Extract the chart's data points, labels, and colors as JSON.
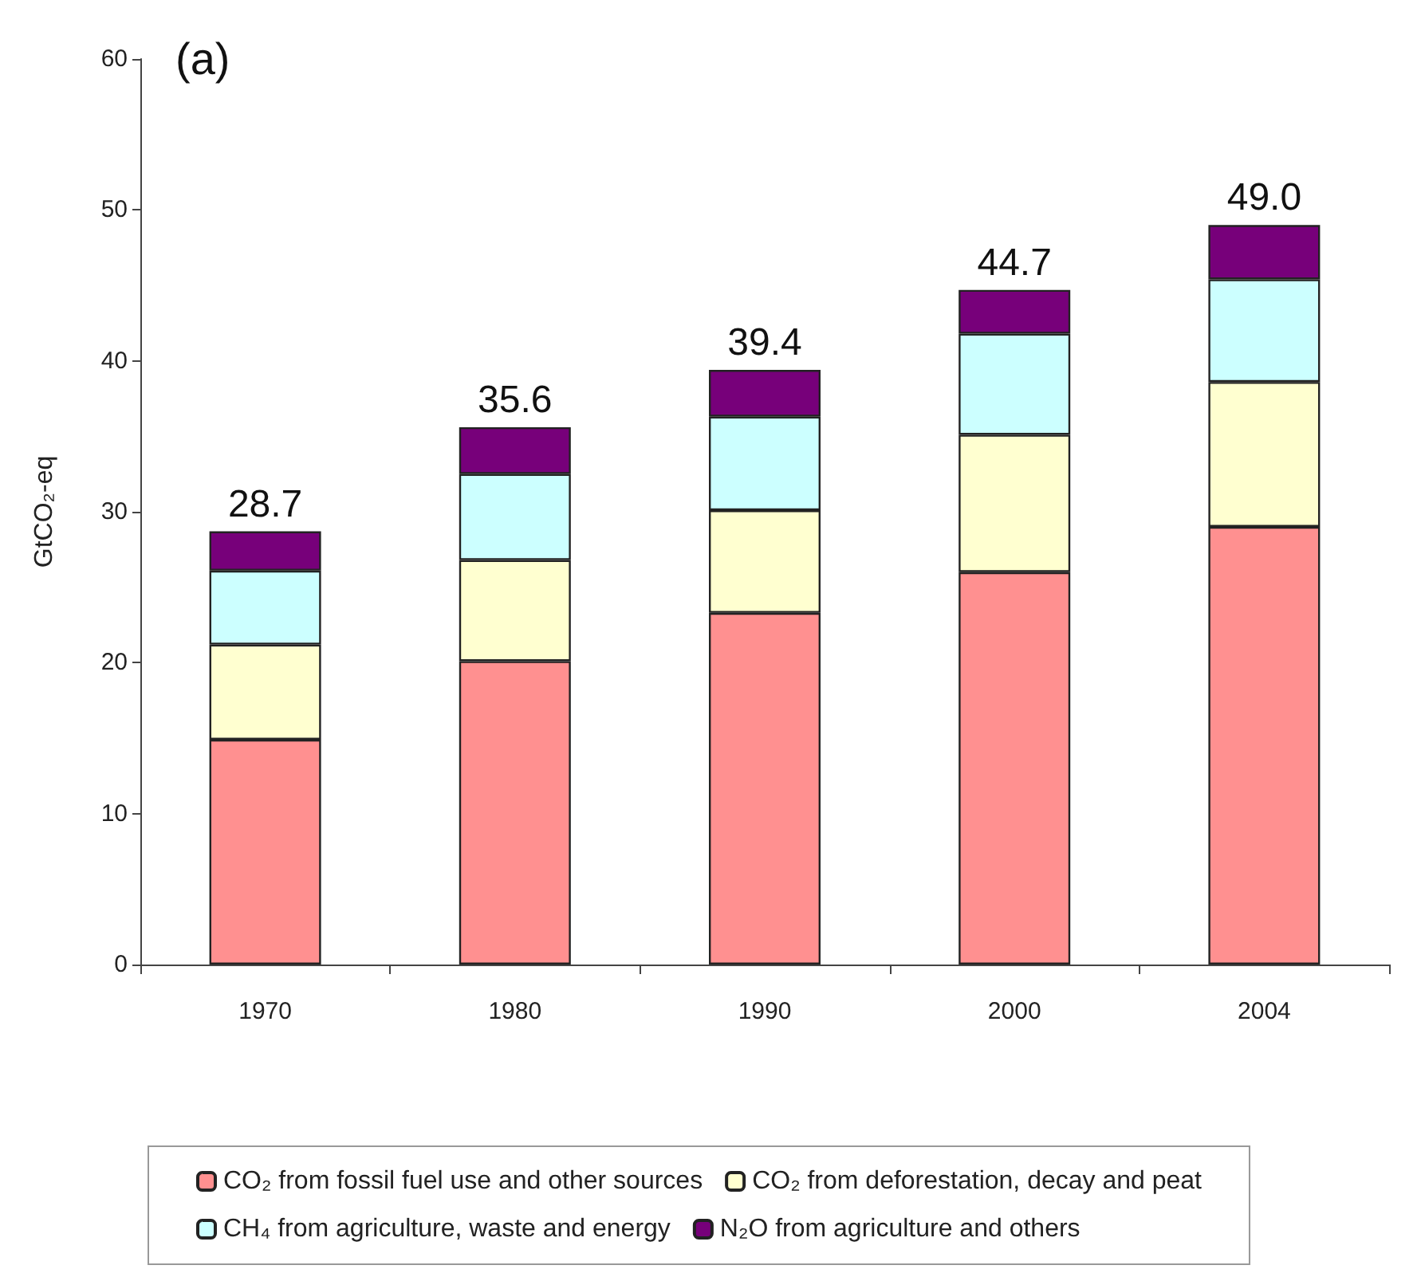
{
  "chart_data": {
    "type": "bar",
    "title": "(a)",
    "ylabel": "GtCO₂-eq",
    "categories": [
      "1970",
      "1980",
      "1990",
      "2000",
      "2004"
    ],
    "stacked": true,
    "ylim": [
      0,
      60
    ],
    "yticks": [
      0,
      10,
      20,
      30,
      40,
      50,
      60
    ],
    "grid": false,
    "legend": "bottom",
    "series": [
      {
        "name": "CO₂ from fossil fuel use and other sources",
        "color": "#ff9090",
        "values": [
          14.9,
          20.1,
          23.3,
          26.0,
          29.0
        ]
      },
      {
        "name": "CO₂ from deforestation, decay and peat",
        "color": "#ffffd0",
        "values": [
          6.3,
          6.7,
          6.8,
          9.1,
          9.6
        ]
      },
      {
        "name": "CH₄ from agriculture, waste and energy",
        "color": "#ccffff",
        "values": [
          4.9,
          5.7,
          6.2,
          6.7,
          6.8
        ]
      },
      {
        "name": "N₂O from agriculture and others",
        "color": "#77007a",
        "values": [
          2.6,
          3.1,
          3.1,
          2.9,
          3.6
        ]
      }
    ],
    "totals": [
      "28.7",
      "35.6",
      "39.4",
      "44.7",
      "49.0"
    ]
  }
}
